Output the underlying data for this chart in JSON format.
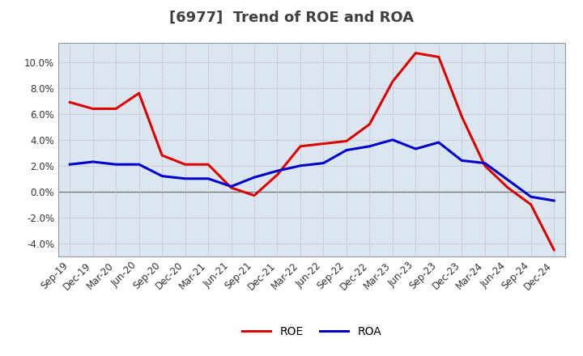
{
  "title": "[6977]  Trend of ROE and ROA",
  "x_labels": [
    "Sep-19",
    "Dec-19",
    "Mar-20",
    "Jun-20",
    "Sep-20",
    "Dec-20",
    "Mar-21",
    "Jun-21",
    "Sep-21",
    "Dec-21",
    "Mar-22",
    "Jun-22",
    "Sep-22",
    "Dec-22",
    "Mar-23",
    "Jun-23",
    "Sep-23",
    "Dec-23",
    "Mar-24",
    "Jun-24",
    "Sep-24",
    "Dec-24"
  ],
  "ROE": [
    6.9,
    6.4,
    6.4,
    7.6,
    2.8,
    2.1,
    2.1,
    0.3,
    -0.3,
    1.3,
    3.5,
    3.7,
    3.9,
    5.2,
    8.5,
    10.7,
    10.4,
    5.8,
    2.0,
    0.3,
    -1.0,
    -4.5
  ],
  "ROA": [
    2.1,
    2.3,
    2.1,
    2.1,
    1.2,
    1.0,
    1.0,
    0.4,
    1.1,
    1.6,
    2.0,
    2.2,
    3.2,
    3.5,
    4.0,
    3.3,
    3.8,
    2.4,
    2.2,
    0.9,
    -0.4,
    -0.7
  ],
  "ROE_color": "#dd0000",
  "ROA_color": "#0000cc",
  "plot_bg_color": "#dce6f1",
  "fig_bg_color": "#ffffff",
  "grid_color": "#aaaaaa",
  "title_color": "#404040",
  "zero_line_color": "#555555",
  "border_color": "#999999",
  "ylim": [
    -5.0,
    11.5
  ],
  "yticks": [
    -4.0,
    -2.0,
    0.0,
    2.0,
    4.0,
    6.0,
    8.0,
    10.0
  ],
  "line_width": 2.2,
  "title_fontsize": 13,
  "tick_fontsize": 8.5
}
